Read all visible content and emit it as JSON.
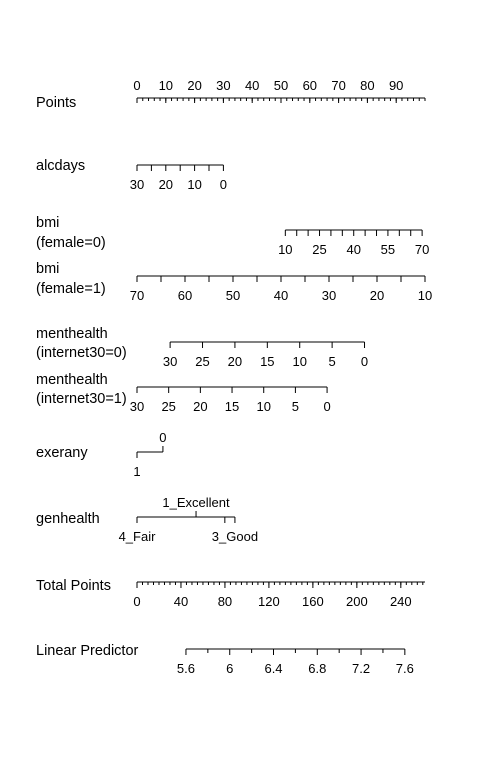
{
  "chart_data": {
    "type": "nomogram",
    "rows": [
      {
        "id": "points",
        "label": [
          "Points"
        ],
        "min": 0,
        "max": 100,
        "labels": [
          0,
          10,
          20,
          30,
          40,
          50,
          60,
          70,
          80,
          90
        ],
        "minor": [],
        "step": 2
      },
      {
        "id": "alcdays",
        "label": [
          "alcdays"
        ],
        "min": 0,
        "max": 30,
        "labels": [
          30,
          20,
          10,
          0
        ],
        "minor": [
          25,
          15,
          5
        ],
        "points_at_min": 30,
        "points_at_max": 0
      },
      {
        "id": "bmi-female0",
        "label": [
          "bmi",
          "(female=0)"
        ],
        "min": 10,
        "max": 70,
        "labels": [
          10,
          25,
          40,
          55,
          70
        ],
        "minor": [
          15,
          20,
          30,
          35,
          45,
          50,
          60,
          65
        ],
        "points_at_min": 51.5,
        "points_at_max": 99
      },
      {
        "id": "bmi-female1",
        "label": [
          "bmi",
          "(female=1)"
        ],
        "min": 10,
        "max": 70,
        "labels": [
          70,
          60,
          50,
          40,
          30,
          20,
          10
        ],
        "minor": [
          65,
          55,
          45,
          35,
          25,
          15
        ],
        "points_at_min": 100,
        "points_at_max": 0
      },
      {
        "id": "menthealth-internet0",
        "label": [
          "menthealth",
          "(internet30=0)"
        ],
        "min": 0,
        "max": 30,
        "labels": [
          30,
          25,
          20,
          15,
          10,
          5,
          0
        ],
        "minor": [],
        "points_at_min": 79,
        "points_at_max": 11.5
      },
      {
        "id": "menthealth-internet1",
        "label": [
          "menthealth",
          "(internet30=1)"
        ],
        "min": 0,
        "max": 30,
        "labels": [
          30,
          25,
          20,
          15,
          10,
          5,
          0
        ],
        "minor": [],
        "points_at_min": 66,
        "points_at_max": 0
      },
      {
        "id": "exerany",
        "label": [
          "exerany"
        ],
        "type": "categorical",
        "ticks": [
          {
            "label": "0",
            "points": 9,
            "pos": "above"
          },
          {
            "label": "1",
            "points": 0,
            "pos": "below"
          }
        ]
      },
      {
        "id": "genhealth",
        "label": [
          "genhealth"
        ],
        "type": "categorical",
        "ticks": [
          {
            "label": "1_Excellent",
            "points": 20.5,
            "pos": "above"
          },
          {
            "label": "4_Fair",
            "points": 0,
            "pos": "below"
          },
          {
            "label": "3_Good",
            "points": 34,
            "pos": "below"
          },
          {
            "label": "",
            "points": 30.5,
            "pos": "none"
          }
        ]
      },
      {
        "id": "total-points",
        "label": [
          "Total Points"
        ],
        "min": 0,
        "max": 262,
        "labels": [
          0,
          40,
          80,
          120,
          160,
          200,
          240
        ],
        "minor": [],
        "step": 5,
        "points_at_min": 0,
        "points_at_max": 100
      },
      {
        "id": "linear-predictor",
        "label": [
          "Linear Predictor"
        ],
        "min": 5.6,
        "max": 7.6,
        "labels": [
          "5.6",
          "6",
          "6.4",
          "6.8",
          "7.2",
          "7.6"
        ],
        "minor": [
          5.8,
          6.2,
          6.6,
          7.0,
          7.4
        ],
        "points_at_min": 17,
        "points_at_max": 93
      }
    ]
  }
}
